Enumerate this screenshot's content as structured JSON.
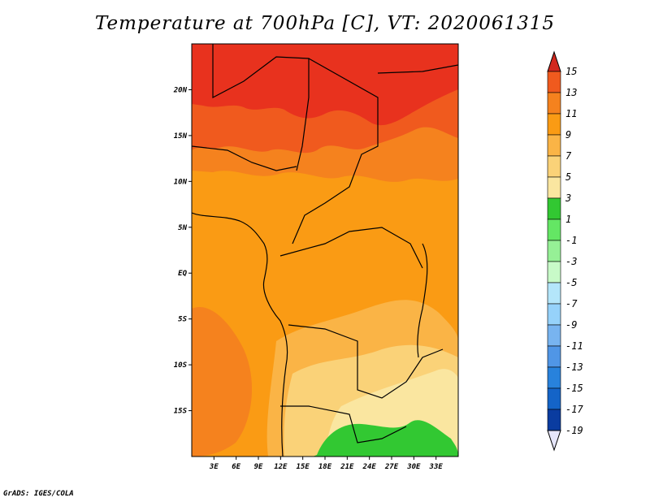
{
  "title": "Temperature at 700hPa [C], VT: 2020061315",
  "credit": "GrADS: IGES/COLA",
  "map": {
    "lon_range": [
      0,
      36
    ],
    "lat_range": [
      -20,
      25
    ],
    "lat_ticks": [
      {
        "value": 20,
        "label": "20N"
      },
      {
        "value": 15,
        "label": "15N"
      },
      {
        "value": 10,
        "label": "10N"
      },
      {
        "value": 5,
        "label": "5N"
      },
      {
        "value": 0,
        "label": "EQ"
      },
      {
        "value": -5,
        "label": "5S"
      },
      {
        "value": -10,
        "label": "10S"
      },
      {
        "value": -15,
        "label": "15S"
      }
    ],
    "lon_ticks": [
      {
        "value": 3,
        "label": "3E"
      },
      {
        "value": 6,
        "label": "6E"
      },
      {
        "value": 9,
        "label": "9E"
      },
      {
        "value": 12,
        "label": "12E"
      },
      {
        "value": 15,
        "label": "15E"
      },
      {
        "value": 18,
        "label": "18E"
      },
      {
        "value": 21,
        "label": "21E"
      },
      {
        "value": 24,
        "label": "24E"
      },
      {
        "value": 27,
        "label": "27E"
      },
      {
        "value": 30,
        "label": "30E"
      },
      {
        "value": 33,
        "label": "33E"
      }
    ]
  },
  "colorbar": {
    "levels": [
      "15",
      "13",
      "11",
      "9",
      "7",
      "5",
      "3",
      "1",
      "-1",
      "-3",
      "-5",
      "-7",
      "-9",
      "-11",
      "-13",
      "-15",
      "-17",
      "-19"
    ],
    "colors": [
      "#e8321e",
      "#f05a1e",
      "#f5821e",
      "#fa9b14",
      "#fab446",
      "#fad278",
      "#fae6a0",
      "#32c832",
      "#64e664",
      "#96f096",
      "#c8fac8",
      "#b4e6fa",
      "#96d2fa",
      "#78b4f0",
      "#5096e6",
      "#2882dc",
      "#1464c8",
      "#0a3ca0",
      "#0a0a78"
    ],
    "top_arrow_color": "#d2281e",
    "bottom_arrow_color": "#e6e6fa"
  }
}
